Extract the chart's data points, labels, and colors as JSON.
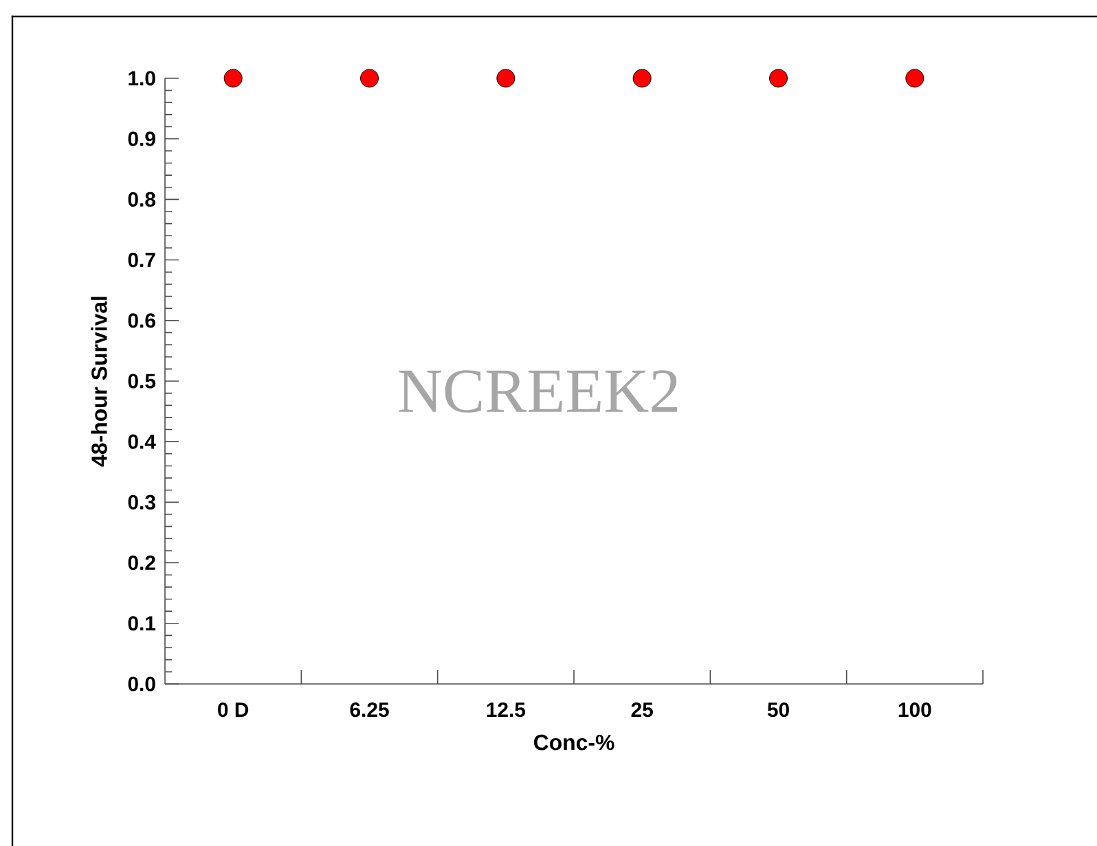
{
  "chart_data": {
    "type": "scatter",
    "xlabel": "Conc-%",
    "ylabel": "48-hour Survival",
    "categories": [
      "0 D",
      "6.25",
      "12.5",
      "25",
      "50",
      "100"
    ],
    "series": [
      {
        "color": "#ff0000",
        "values": [
          1.0,
          1.0,
          1.0,
          1.0,
          1.0,
          1.0
        ]
      }
    ],
    "ylim": [
      0,
      1.0
    ],
    "yticks": [
      {
        "value": 0,
        "label": "0.0"
      },
      {
        "value": 0.1,
        "label": "0.1"
      },
      {
        "value": 0.2,
        "label": "0.2"
      },
      {
        "value": 0.3,
        "label": "0.3"
      },
      {
        "value": 0.4,
        "label": "0.4"
      },
      {
        "value": 0.5,
        "label": "0.5"
      },
      {
        "value": 0.6,
        "label": "0.6"
      },
      {
        "value": 0.7,
        "label": "0.7"
      },
      {
        "value": 0.8,
        "label": "0.8"
      },
      {
        "value": 0.9,
        "label": "0.9"
      },
      {
        "value": 1.0,
        "label": "1.0"
      }
    ],
    "annotations": [
      "NCREEK2"
    ],
    "grid": false,
    "legend": false
  }
}
